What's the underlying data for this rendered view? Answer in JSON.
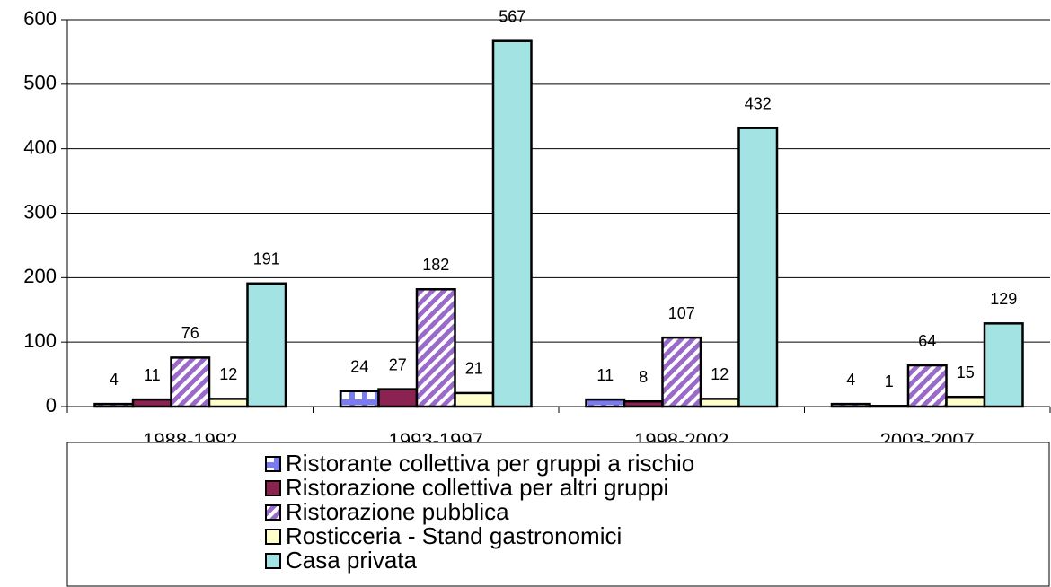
{
  "chart_data": {
    "type": "bar",
    "categories": [
      "1988-1992",
      "1993-1997",
      "1998-2002",
      "2003-2007"
    ],
    "series": [
      {
        "name": "Ristorante collettiva per gruppi a rischio",
        "color": "#7b7bf0",
        "pattern": "checker",
        "values": [
          4,
          24,
          11,
          4
        ]
      },
      {
        "name": "Ristorazione collettiva per altri gruppi",
        "color": "#8b2252",
        "values": [
          11,
          27,
          8,
          1
        ]
      },
      {
        "name": "Ristorazione pubblica",
        "color": "#9a6acb",
        "pattern": "diagonal",
        "values": [
          76,
          182,
          107,
          64
        ]
      },
      {
        "name": "Rosticceria - Stand gastronomici",
        "color": "#ffffcc",
        "values": [
          12,
          21,
          12,
          15
        ]
      },
      {
        "name": "Casa privata",
        "color": "#a3e3e3",
        "values": [
          191,
          567,
          432,
          129
        ]
      }
    ],
    "ylim": [
      0,
      600
    ],
    "yticks": [
      0,
      100,
      200,
      300,
      400,
      500,
      600
    ],
    "grid": true,
    "legend": "bottom"
  }
}
